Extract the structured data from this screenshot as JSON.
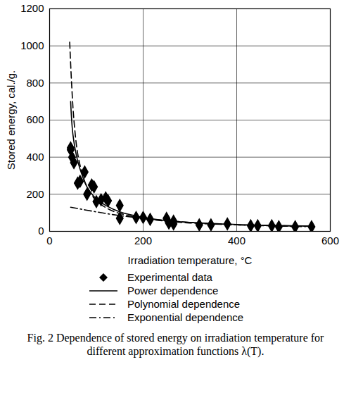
{
  "chart_data": {
    "type": "scatter",
    "title": "Fig. 2 Dependence of stored energy on irradiation temperature for different approximation functions λ(T).",
    "x_label": "Irradiation temperature, °C",
    "y_label": "Stored energy, cal./g.",
    "xlim": [
      0,
      600
    ],
    "xticks": [
      0,
      200,
      400,
      600
    ],
    "ylim": [
      0,
      1200
    ],
    "yticks": [
      0,
      200,
      400,
      600,
      800,
      1000,
      1200
    ],
    "grid": true,
    "legend": "bottom",
    "series": [
      {
        "name": "Experimental data",
        "type": "scatter",
        "marker": "diamond",
        "color": "#000000",
        "x": [
          45,
          45,
          48,
          52,
          60,
          65,
          75,
          80,
          90,
          95,
          100,
          110,
          120,
          125,
          150,
          150,
          185,
          200,
          215,
          250,
          255,
          265,
          265,
          320,
          345,
          380,
          430,
          445,
          475,
          490,
          525,
          560
        ],
        "values": [
          450,
          440,
          400,
          370,
          260,
          270,
          320,
          200,
          250,
          240,
          160,
          170,
          180,
          165,
          140,
          70,
          75,
          75,
          65,
          70,
          45,
          55,
          40,
          35,
          35,
          40,
          30,
          30,
          30,
          25,
          25,
          25
        ]
      },
      {
        "name": "Power dependence",
        "type": "line",
        "line_style": "solid",
        "color": "#000000",
        "x": [
          45,
          50,
          60,
          70,
          80,
          100,
          120,
          150,
          200,
          250,
          300,
          400,
          500,
          560
        ],
        "values": [
          700,
          520,
          380,
          300,
          240,
          175,
          140,
          105,
          75,
          58,
          48,
          37,
          31,
          28
        ]
      },
      {
        "name": "Polynomial dependence",
        "type": "line",
        "line_style": "dashed",
        "color": "#000000",
        "x": [
          43,
          47,
          52,
          60,
          70,
          80,
          100,
          130,
          160,
          200,
          250,
          300,
          400,
          500,
          560
        ],
        "values": [
          1020,
          800,
          600,
          420,
          310,
          240,
          165,
          115,
          90,
          70,
          55,
          45,
          35,
          30,
          28
        ]
      },
      {
        "name": "Exponential dependence",
        "type": "line",
        "line_style": "dashdot",
        "color": "#000000",
        "x": [
          45,
          100,
          150,
          200,
          250,
          300,
          400,
          500,
          560
        ],
        "values": [
          130,
          105,
          85,
          70,
          58,
          48,
          35,
          28,
          25
        ]
      }
    ]
  }
}
